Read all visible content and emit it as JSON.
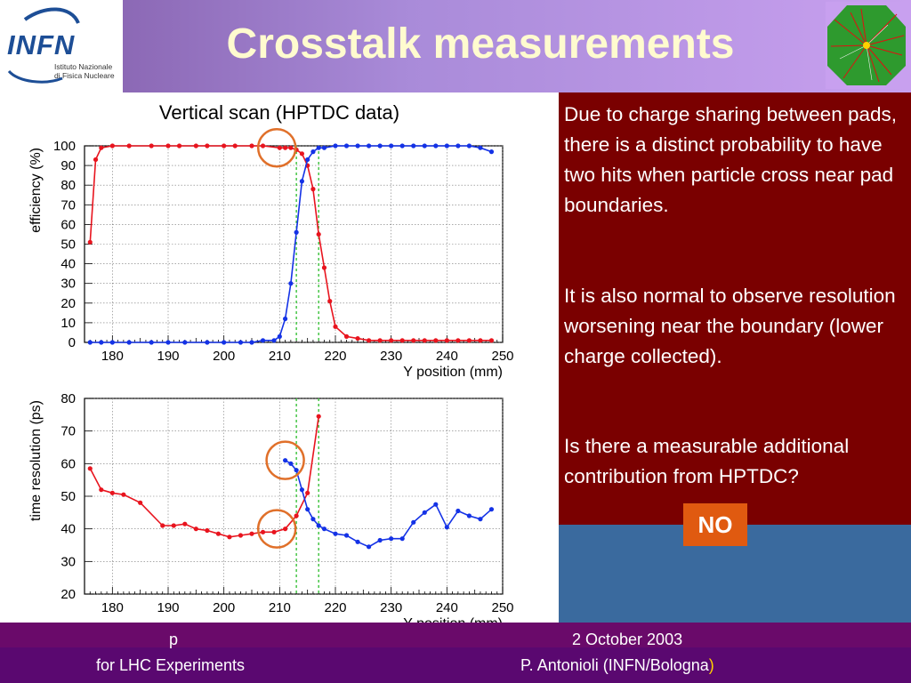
{
  "slide": {
    "title": "Crosstalk measurements",
    "logo": {
      "name": "INFN",
      "line1": "Istituto Nazionale",
      "line2": "di Fisica Nucleare"
    },
    "text_paragraphs": [
      "Due to charge sharing between pads, there is a distinct probability to have two hits when particle cross near pad boundaries.",
      "It is also normal to observe resolution worsening near the boundary (lower charge collected).",
      "Is there a measurable additional contribution from HPTDC?"
    ],
    "badge": "NO",
    "footer": {
      "left_fragment": "p",
      "left": "for LHC Experiments",
      "date": "2 October 2003",
      "author": "P. Antonioli (INFN/Bologna",
      "author_paren": ")"
    },
    "colors": {
      "header_bg": "#9b7ed0",
      "title": "#fffbcf",
      "text_panel": "#7a0000",
      "blue_panel": "#3a6a9e",
      "badge": "#e05a10",
      "footer": "#6a0a6a",
      "series_red": "#e8141e",
      "series_blue": "#1432e6",
      "guide_lines": "#3ac23a",
      "circles": "#e0702a"
    }
  },
  "chart_data": [
    {
      "type": "line",
      "title": "Vertical scan (HPTDC data)",
      "xlabel": "Y position (mm)",
      "ylabel": "efficiency (%)",
      "xlim": [
        175,
        250
      ],
      "ylim": [
        0,
        100
      ],
      "xticks": [
        180,
        190,
        200,
        210,
        220,
        230,
        240,
        250
      ],
      "yticks": [
        0,
        10,
        20,
        30,
        40,
        50,
        60,
        70,
        80,
        90,
        100
      ],
      "grid": true,
      "series": [
        {
          "color": "#e8141e",
          "x": [
            176,
            177,
            178,
            180,
            183,
            187,
            190,
            192,
            195,
            197,
            200,
            202,
            205,
            207,
            210,
            211,
            212,
            213,
            214,
            215,
            216,
            217,
            218,
            219,
            220,
            222,
            224,
            226,
            228,
            230,
            232,
            234,
            236,
            238,
            240,
            242,
            244,
            246,
            248
          ],
          "y": [
            51,
            93,
            99,
            100,
            100,
            100,
            100,
            100,
            100,
            100,
            100,
            100,
            100,
            100,
            99,
            99,
            99,
            98,
            96,
            90,
            78,
            55,
            38,
            21,
            8,
            3,
            2,
            1,
            1,
            1,
            1,
            1,
            1,
            1,
            1,
            1,
            1,
            1,
            1
          ]
        },
        {
          "color": "#1432e6",
          "x": [
            176,
            178,
            180,
            183,
            187,
            190,
            193,
            197,
            200,
            203,
            205,
            207,
            209,
            210,
            211,
            212,
            213,
            214,
            215,
            216,
            217,
            218,
            220,
            222,
            224,
            226,
            228,
            230,
            232,
            234,
            236,
            238,
            240,
            242,
            244,
            246,
            248
          ],
          "y": [
            0,
            0,
            0,
            0,
            0,
            0,
            0,
            0,
            0,
            0,
            0,
            1,
            1,
            3,
            12,
            30,
            56,
            82,
            93,
            97,
            99,
            99,
            100,
            100,
            100,
            100,
            100,
            100,
            100,
            100,
            100,
            100,
            100,
            100,
            100,
            99,
            97
          ]
        }
      ],
      "vlines": [
        213,
        217
      ]
    },
    {
      "type": "line",
      "xlabel": "Y position (mm)",
      "ylabel": "time resolution (ps)",
      "xlim": [
        175,
        250
      ],
      "ylim": [
        20,
        80
      ],
      "xticks": [
        180,
        190,
        200,
        210,
        220,
        230,
        240,
        250
      ],
      "yticks": [
        20,
        30,
        40,
        50,
        60,
        70,
        80
      ],
      "grid": true,
      "series": [
        {
          "color": "#e8141e",
          "x": [
            176,
            178,
            180,
            182,
            185,
            189,
            191,
            193,
            195,
            197,
            199,
            201,
            203,
            205,
            207,
            209,
            211,
            213,
            215,
            217
          ],
          "y": [
            58.5,
            52,
            51,
            50.5,
            48,
            41,
            41,
            41.5,
            40,
            39.5,
            38.5,
            37.5,
            38,
            38.5,
            39,
            39,
            40,
            44,
            51,
            74.5
          ]
        },
        {
          "color": "#1432e6",
          "x": [
            211,
            212,
            213,
            214,
            215,
            216,
            217,
            218,
            220,
            222,
            224,
            226,
            228,
            230,
            232,
            234,
            236,
            238,
            240,
            242,
            244,
            246,
            248
          ],
          "y": [
            61,
            60,
            58,
            52,
            46,
            43,
            41,
            40,
            38.5,
            38,
            36,
            34.5,
            36.5,
            37,
            37,
            42,
            45,
            47.5,
            40.5,
            45.5,
            44,
            43,
            46
          ]
        }
      ],
      "vlines": [
        213,
        217
      ]
    }
  ]
}
